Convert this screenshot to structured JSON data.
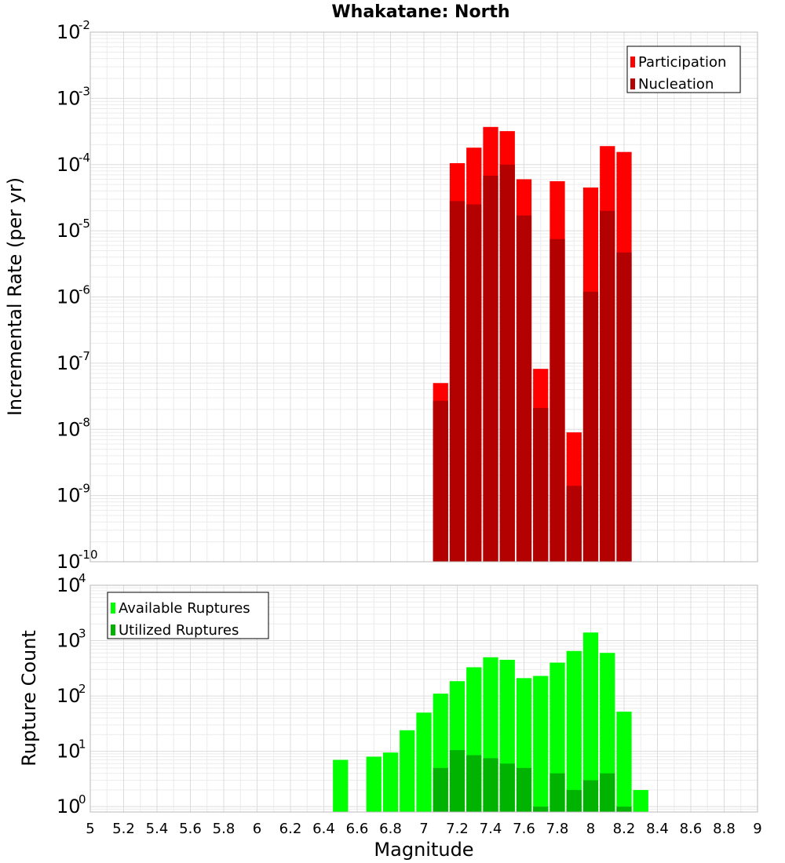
{
  "chart_data": [
    {
      "type": "bar",
      "title": "Whakatane: North",
      "ylabel": "Incremental Rate (per yr)",
      "xlabel": "",
      "yscale": "log",
      "ylim": [
        1e-10,
        0.01
      ],
      "xlim": [
        5,
        9
      ],
      "grid": true,
      "legend_position": "top-right",
      "x": [
        7.1,
        7.2,
        7.3,
        7.4,
        7.5,
        7.6,
        7.7,
        7.8,
        7.9,
        8.0,
        8.1,
        8.2
      ],
      "series": [
        {
          "name": "Participation",
          "color": "#ff0000",
          "values": [
            5e-08,
            0.000105,
            0.00018,
            0.00037,
            0.00032,
            6e-05,
            8.2e-08,
            5.6e-05,
            9e-09,
            4.5e-05,
            0.00019,
            0.000155
          ]
        },
        {
          "name": "Nucleation",
          "color": "#b30000",
          "values": [
            2.7e-08,
            2.8e-05,
            2.5e-05,
            6.8e-05,
            0.0001,
            1.7e-05,
            2.1e-08,
            7.5e-06,
            1.4e-09,
            1.2e-06,
            2e-05,
            4.7e-06
          ]
        }
      ],
      "y_ticks": [
        {
          "base": "10",
          "exp": "-10"
        },
        {
          "base": "10",
          "exp": "-9"
        },
        {
          "base": "10",
          "exp": "-8"
        },
        {
          "base": "10",
          "exp": "-7"
        },
        {
          "base": "10",
          "exp": "-6"
        },
        {
          "base": "10",
          "exp": "-5"
        },
        {
          "base": "10",
          "exp": "-4"
        },
        {
          "base": "10",
          "exp": "-3"
        },
        {
          "base": "10",
          "exp": "-2"
        }
      ]
    },
    {
      "type": "bar",
      "title": "",
      "ylabel": "Rupture Count",
      "xlabel": "Magnitude",
      "yscale": "log",
      "ylim": [
        0.8,
        10000
      ],
      "xlim": [
        5,
        9
      ],
      "grid": true,
      "legend_position": "top-left",
      "x": [
        6.5,
        6.6,
        6.7,
        6.8,
        6.9,
        7.0,
        7.1,
        7.2,
        7.3,
        7.4,
        7.5,
        7.6,
        7.7,
        7.8,
        7.9,
        8.0,
        8.1,
        8.2,
        8.3
      ],
      "series": [
        {
          "name": "Available Ruptures",
          "color": "#00ff00",
          "values": [
            7,
            null,
            8,
            9.5,
            24,
            50,
            110,
            185,
            330,
            500,
            450,
            210,
            230,
            400,
            650,
            1400,
            600,
            52,
            2
          ]
        },
        {
          "name": "Utilized Ruptures",
          "color": "#00b300",
          "values": [
            null,
            null,
            null,
            null,
            null,
            null,
            5,
            10.5,
            8.5,
            7.5,
            6,
            5,
            1,
            4,
            2,
            3,
            4,
            1,
            null
          ]
        }
      ],
      "y_ticks": [
        {
          "base": "10",
          "exp": "0"
        },
        {
          "base": "10",
          "exp": "1"
        },
        {
          "base": "10",
          "exp": "2"
        },
        {
          "base": "10",
          "exp": "3"
        },
        {
          "base": "10",
          "exp": "4"
        }
      ],
      "x_tick_labels": [
        "5",
        "5.2",
        "5.4",
        "5.6",
        "5.8",
        "6",
        "6.2",
        "6.4",
        "6.6",
        "6.8",
        "7",
        "7.2",
        "7.4",
        "7.6",
        "7.8",
        "8",
        "8.2",
        "8.4",
        "8.6",
        "8.8",
        "9"
      ]
    }
  ]
}
